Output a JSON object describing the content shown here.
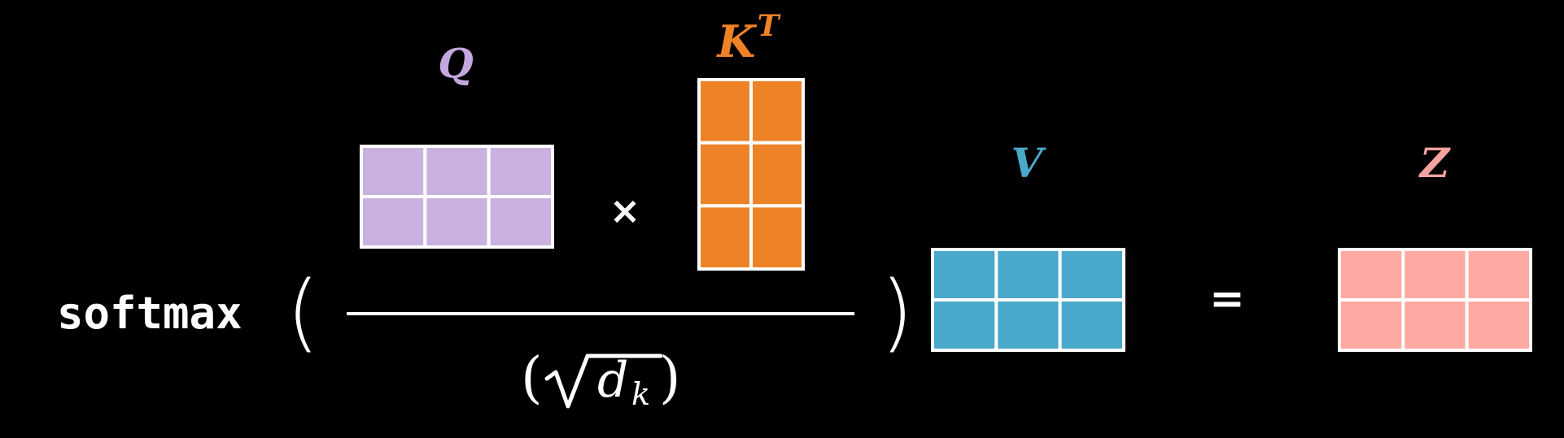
{
  "formula": {
    "function_name": "softmax",
    "open_paren": "(",
    "close_paren": ")",
    "multiply_symbol": "×",
    "equals_symbol": "=",
    "denominator": {
      "open_paren": "(",
      "close_paren": ")",
      "radicand_base": "d",
      "radicand_subscript": "k"
    }
  },
  "matrices": {
    "q": {
      "label": "Q",
      "label_superscript": "",
      "rows": 2,
      "cols": 3,
      "color": "#c9b2df",
      "label_color": "#c3a8e0"
    },
    "kt": {
      "label": "K",
      "label_superscript": "T",
      "rows": 3,
      "cols": 2,
      "color": "#ee8226",
      "label_color": "#ee8226"
    },
    "v": {
      "label": "V",
      "label_superscript": "",
      "rows": 2,
      "cols": 3,
      "color": "#4aa8cb",
      "label_color": "#4aa8cb"
    },
    "z": {
      "label": "Z",
      "label_superscript": "",
      "rows": 2,
      "cols": 3,
      "color": "#fea9a2",
      "label_color": "#f5a3a0"
    }
  },
  "colors": {
    "background": "#000000",
    "text": "#ffffff",
    "grid_lines": "#ffffff"
  }
}
